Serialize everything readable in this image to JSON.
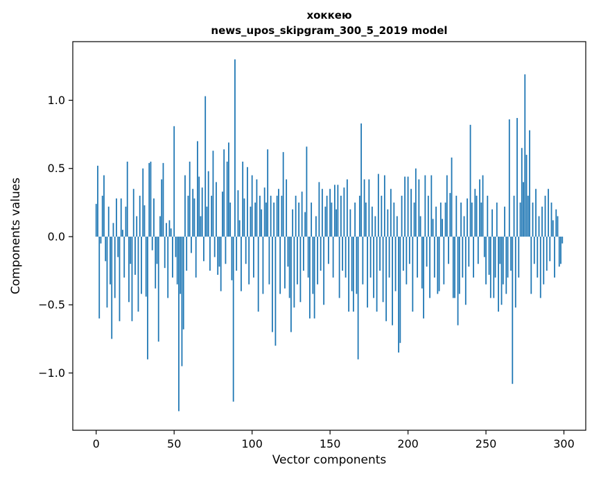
{
  "figure": {
    "title_line1": "хоккею",
    "title_line2": "news_upos_skipgram_300_5_2019 model",
    "xlabel": "Vector components",
    "ylabel": "Components values"
  },
  "chart_data": {
    "type": "bar",
    "title": "хоккею — news_upos_skipgram_300_5_2019 model",
    "xlabel": "Vector components",
    "ylabel": "Components values",
    "legend": "none",
    "grid": false,
    "bar_color": "#1f77b4",
    "xlim": [
      -15,
      314
    ],
    "ylim": [
      -1.42,
      1.43
    ],
    "xtick_values": [
      0,
      50,
      100,
      150,
      200,
      250,
      300
    ],
    "xtick_labels": [
      "0",
      "50",
      "100",
      "150",
      "200",
      "250",
      "300"
    ],
    "ytick_values": [
      -1.0,
      -0.5,
      0.0,
      0.5,
      1.0
    ],
    "ytick_labels": [
      "−1.0",
      "−0.5",
      "0.0",
      "0.5",
      "1.0"
    ],
    "x_start": 0,
    "bar_width": 0.8,
    "values": [
      0.24,
      0.52,
      -0.6,
      -0.05,
      0.3,
      0.45,
      -0.18,
      -0.52,
      0.22,
      -0.35,
      -0.75,
      0.1,
      -0.45,
      0.28,
      -0.15,
      -0.62,
      0.28,
      0.05,
      -0.3,
      0.22,
      0.55,
      -0.48,
      -0.2,
      -0.62,
      0.35,
      -0.28,
      0.15,
      -0.55,
      0.3,
      -0.42,
      0.5,
      0.23,
      -0.44,
      -0.9,
      0.54,
      0.55,
      -0.1,
      0.28,
      -0.38,
      -0.2,
      -0.77,
      0.15,
      0.42,
      0.54,
      -0.23,
      0.1,
      -0.45,
      0.12,
      0.06,
      -0.3,
      0.81,
      -0.15,
      -0.35,
      -1.28,
      -0.42,
      -0.95,
      -0.68,
      0.45,
      -0.25,
      0.3,
      0.55,
      -0.12,
      0.35,
      0.28,
      -0.3,
      0.7,
      0.44,
      0.15,
      0.36,
      -0.18,
      1.03,
      0.22,
      0.48,
      -0.25,
      0.3,
      0.63,
      -0.15,
      0.4,
      -0.28,
      -0.22,
      -0.4,
      0.33,
      0.64,
      -0.2,
      0.55,
      0.69,
      0.25,
      -0.32,
      -1.21,
      1.3,
      -0.25,
      0.34,
      0.12,
      -0.4,
      0.55,
      0.28,
      -0.2,
      0.51,
      -0.35,
      0.22,
      0.45,
      -0.3,
      0.25,
      0.42,
      -0.55,
      0.3,
      0.2,
      -0.42,
      0.36,
      0.25,
      0.64,
      -0.35,
      0.3,
      -0.7,
      0.25,
      -0.8,
      0.3,
      0.35,
      -0.42,
      0.3,
      0.62,
      -0.38,
      0.42,
      -0.22,
      -0.45,
      -0.7,
      0.2,
      -0.52,
      0.3,
      -0.35,
      0.25,
      -0.48,
      0.33,
      -0.25,
      0.18,
      0.66,
      -0.3,
      -0.6,
      0.25,
      -0.42,
      -0.6,
      0.15,
      -0.35,
      0.4,
      -0.25,
      0.35,
      -0.5,
      0.22,
      0.3,
      -0.2,
      0.35,
      0.25,
      -0.3,
      0.38,
      0.2,
      0.38,
      -0.45,
      0.3,
      -0.25,
      0.36,
      -0.3,
      0.42,
      -0.55,
      0.2,
      -0.4,
      -0.55,
      0.25,
      -0.42,
      -0.9,
      0.3,
      0.83,
      -0.35,
      0.42,
      0.25,
      -0.52,
      0.42,
      -0.3,
      0.22,
      -0.45,
      0.15,
      -0.55,
      0.46,
      -0.25,
      0.3,
      -0.48,
      0.45,
      -0.62,
      0.2,
      -0.3,
      0.35,
      -0.65,
      0.25,
      -0.4,
      0.15,
      -0.85,
      -0.78,
      0.3,
      -0.25,
      0.44,
      -0.35,
      0.44,
      -0.2,
      0.35,
      -0.55,
      0.25,
      0.5,
      -0.3,
      0.42,
      0.15,
      -0.38,
      -0.6,
      0.45,
      -0.22,
      0.3,
      -0.45,
      0.45,
      0.13,
      -0.3,
      0.22,
      -0.42,
      -0.4,
      0.25,
      0.13,
      -0.35,
      0.25,
      0.45,
      -0.2,
      0.32,
      0.58,
      -0.45,
      -0.45,
      0.3,
      -0.65,
      -0.42,
      0.25,
      -0.3,
      0.15,
      -0.5,
      0.28,
      -0.22,
      0.82,
      0.25,
      -0.3,
      0.35,
      0.3,
      -0.2,
      0.42,
      0.25,
      0.45,
      -0.15,
      -0.35,
      0.3,
      -0.28,
      -0.45,
      0.2,
      -0.45,
      -0.3,
      0.25,
      -0.55,
      -0.2,
      -0.5,
      -0.35,
      0.22,
      -0.42,
      -0.3,
      0.86,
      -0.25,
      -1.08,
      0.3,
      -0.52,
      0.87,
      -0.3,
      0.25,
      0.65,
      0.4,
      1.19,
      0.6,
      0.3,
      0.78,
      -0.42,
      0.25,
      -0.2,
      0.35,
      -0.3,
      0.15,
      -0.45,
      0.22,
      -0.35,
      0.3,
      -0.25,
      0.35,
      -0.18,
      0.25,
      0.12,
      -0.3,
      0.2,
      0.15,
      -0.22,
      -0.2,
      -0.05
    ]
  }
}
